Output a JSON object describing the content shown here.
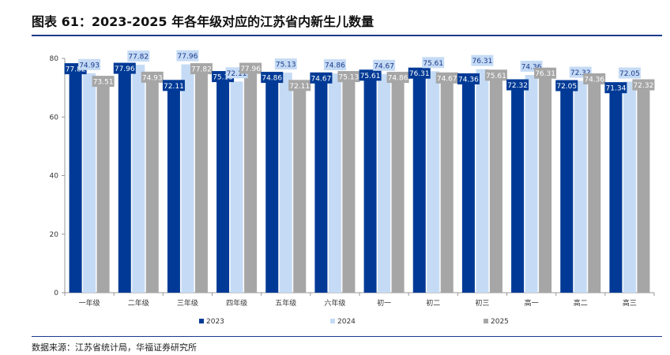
{
  "figure_title": "图表 61：2023-2025 年各年级对应的江苏省内新生儿数量",
  "source": "数据来源：江苏省统计局，华福证券研究所",
  "chart_data": {
    "type": "bar",
    "title": "",
    "xlabel": "",
    "ylabel": "",
    "ylim": [
      0,
      80
    ],
    "yticks": [
      0,
      20,
      40,
      60,
      80
    ],
    "grid": false,
    "legend_position": "bottom",
    "categories": [
      "一年级",
      "二年级",
      "三年级",
      "四年级",
      "五年级",
      "六年级",
      "初一",
      "初二",
      "初三",
      "高一",
      "高二",
      "高三"
    ],
    "series": [
      {
        "name": "2023",
        "color": "#003a96",
        "labelColor": "#ffffff",
        "values": [
          77.82,
          77.96,
          72.11,
          75.13,
          74.86,
          74.67,
          75.61,
          76.31,
          74.36,
          72.32,
          72.05,
          71.34
        ]
      },
      {
        "name": "2024",
        "color": "#c5dbf5",
        "labelColor": "#1a3a8c",
        "values": [
          74.93,
          77.82,
          77.96,
          72.11,
          75.13,
          74.86,
          74.67,
          75.61,
          76.31,
          74.36,
          72.32,
          72.05
        ]
      },
      {
        "name": "2025",
        "color": "#a6a6a6",
        "labelColor": "#ffffff",
        "values": [
          73.51,
          74.93,
          77.82,
          77.96,
          72.11,
          75.13,
          74.86,
          74.67,
          75.61,
          76.31,
          74.36,
          72.32
        ]
      }
    ]
  }
}
